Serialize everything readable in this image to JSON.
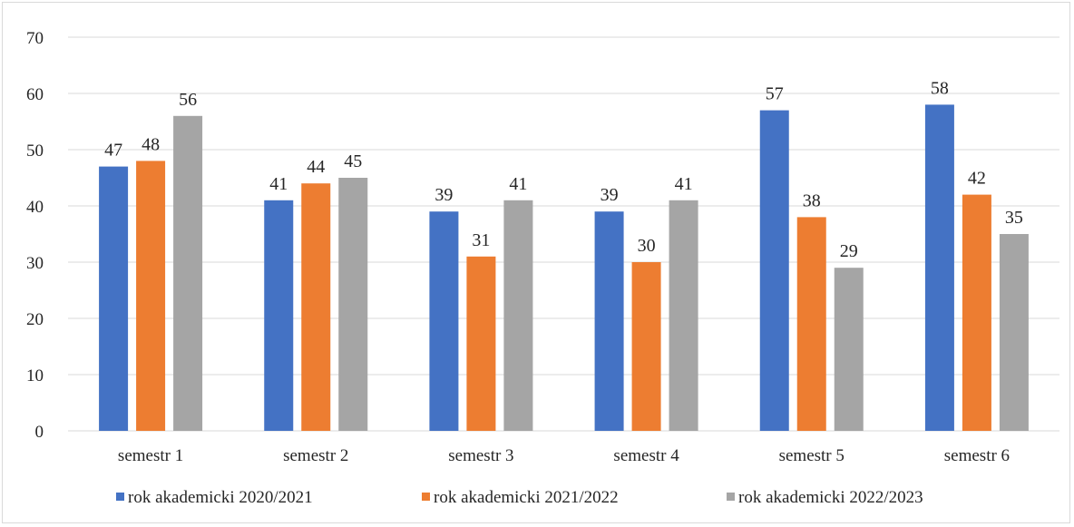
{
  "chart_data": {
    "type": "bar",
    "categories": [
      "semestr 1",
      "semestr 2",
      "semestr 3",
      "semestr 4",
      "semestr 5",
      "semestr 6"
    ],
    "series": [
      {
        "name": "rok akademicki 2020/2021",
        "color": "#4472c4",
        "values": [
          47,
          41,
          39,
          39,
          57,
          58
        ]
      },
      {
        "name": "rok akademicki 2021/2022",
        "color": "#ed7d31",
        "values": [
          48,
          44,
          31,
          30,
          38,
          42
        ]
      },
      {
        "name": "rok akademicki 2022/2023",
        "color": "#a5a5a5",
        "values": [
          56,
          45,
          41,
          41,
          29,
          35
        ]
      }
    ],
    "ylim": [
      0,
      70
    ],
    "yticks": [
      0,
      10,
      20,
      30,
      40,
      50,
      60,
      70
    ],
    "grid": true,
    "legend_position": "bottom",
    "data_labels": true
  }
}
